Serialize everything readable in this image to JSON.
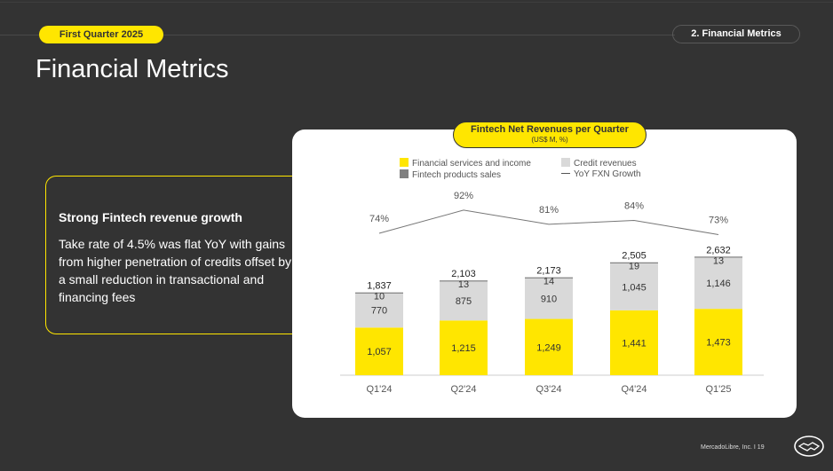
{
  "header": {
    "quarter_label": "First Quarter 2025",
    "section_label": "2. Financial Metrics",
    "page_title": "Financial Metrics"
  },
  "callout": {
    "heading": "Strong Fintech revenue growth",
    "body": "Take rate of 4.5% was flat YoY with gains from higher penetration of credits offset by a small reduction in transactional and financing fees"
  },
  "chart_data": {
    "type": "bar",
    "title": "Fintech Net Revenues per Quarter",
    "subtitle": "(US$ M, %)",
    "categories": [
      "Q1'24",
      "Q2'24",
      "Q3'24",
      "Q4'24",
      "Q1'25"
    ],
    "series": [
      {
        "name": "Financial services and income",
        "color": "#ffe600",
        "values": [
          1057,
          1215,
          1249,
          1441,
          1473
        ]
      },
      {
        "name": "Credit revenues",
        "color": "#d9d9d9",
        "values": [
          770,
          875,
          910,
          1045,
          1146
        ]
      },
      {
        "name": "Fintech products sales",
        "color": "#808080",
        "values": [
          10,
          13,
          14,
          19,
          13
        ]
      }
    ],
    "totals": [
      "1,837",
      "2,103",
      "2,173",
      "2,505",
      "2,632"
    ],
    "line_series": {
      "name": "YoY FXN Growth",
      "values": [
        74,
        92,
        81,
        84,
        73
      ],
      "labels": [
        "74%",
        "92%",
        "81%",
        "84%",
        "73%"
      ]
    },
    "legend_position": "top",
    "stacked": true
  },
  "footer": {
    "text": "MercadoLibre, Inc. I 19",
    "logo_icon": "handshake-icon"
  }
}
